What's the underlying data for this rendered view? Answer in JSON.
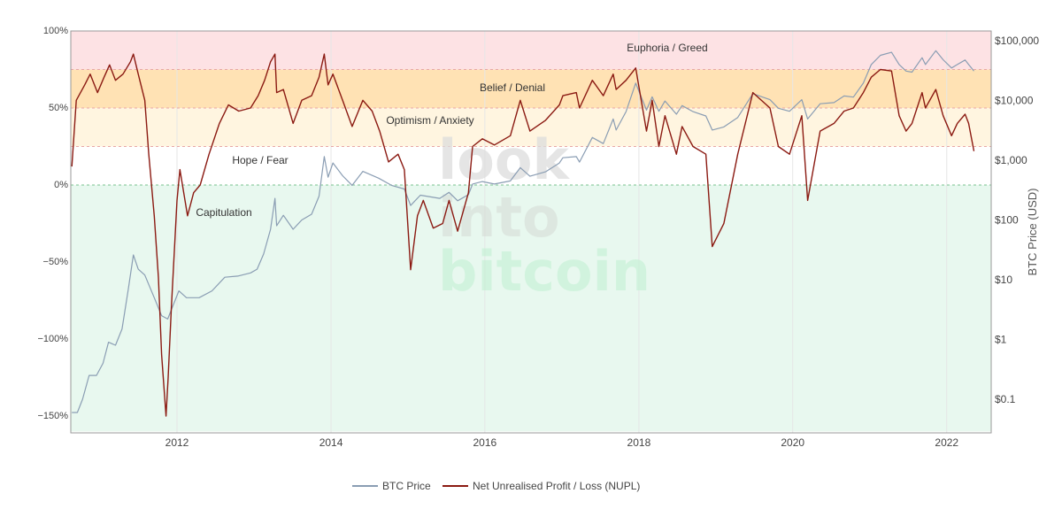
{
  "chart_data": {
    "type": "line",
    "title": "",
    "watermark": [
      "look",
      "into",
      "bitcoin"
    ],
    "x_axis": {
      "type": "date",
      "range": [
        "2010-08-15",
        "2022-07-31"
      ],
      "tick_labels": [
        "2012",
        "2014",
        "2016",
        "2018",
        "2020",
        "2022"
      ],
      "grid": true
    },
    "y_axis_left": {
      "unit": "percent",
      "range": [
        -160,
        100
      ],
      "tick_values": [
        100,
        50,
        0,
        -50,
        -100,
        -150
      ],
      "tick_labels": [
        "100%",
        "50%",
        "0%",
        "−50%",
        "−100%",
        "−150%"
      ]
    },
    "y_axis_right": {
      "title": "BTC Price (USD)",
      "scale": "log",
      "range": [
        0.02,
        200000
      ],
      "tick_values": [
        0.1,
        1,
        10,
        100,
        1000,
        10000,
        100000
      ],
      "tick_labels": [
        "$0.1",
        "$1",
        "$10",
        "$100",
        "$1,000",
        "$10,000",
        "$100,000"
      ]
    },
    "zones": [
      {
        "label": "Euphoria / Greed",
        "from": 75,
        "to": 100,
        "color": "#fde2e4"
      },
      {
        "label": "Belief / Denial",
        "from": 50,
        "to": 75,
        "color": "#ffe2b4"
      },
      {
        "label": "Optimism / Anxiety",
        "from": 25,
        "to": 50,
        "color": "#fff5e0"
      },
      {
        "label": "Hope / Fear",
        "from": 0,
        "to": 25,
        "color": "#ffffff"
      },
      {
        "label": "Capitulation",
        "from": -160,
        "to": 0,
        "color": "#e8f8ef"
      }
    ],
    "legend": {
      "placement": "bottom-center",
      "items": [
        "BTC Price",
        "Net Unrealised Profit / Loss (NUPL)"
      ]
    },
    "series": [
      {
        "name": "BTC Price",
        "axis": "right",
        "color": "#8a9db3",
        "points": [
          [
            "2010-08-20",
            0.06
          ],
          [
            "2010-09-15",
            0.06
          ],
          [
            "2010-10-10",
            0.1
          ],
          [
            "2010-11-10",
            0.25
          ],
          [
            "2010-12-15",
            0.25
          ],
          [
            "2011-01-15",
            0.4
          ],
          [
            "2011-02-10",
            0.9
          ],
          [
            "2011-03-15",
            0.8
          ],
          [
            "2011-04-15",
            1.5
          ],
          [
            "2011-05-15",
            7
          ],
          [
            "2011-06-08",
            26
          ],
          [
            "2011-07-01",
            15
          ],
          [
            "2011-08-01",
            12
          ],
          [
            "2011-09-15",
            5
          ],
          [
            "2011-10-20",
            2.5
          ],
          [
            "2011-11-18",
            2.2
          ],
          [
            "2012-01-10",
            6.5
          ],
          [
            "2012-02-15",
            5
          ],
          [
            "2012-04-15",
            5
          ],
          [
            "2012-06-15",
            6.5
          ],
          [
            "2012-08-15",
            11
          ],
          [
            "2012-10-15",
            11.5
          ],
          [
            "2012-12-15",
            13
          ],
          [
            "2013-01-15",
            15
          ],
          [
            "2013-02-15",
            27
          ],
          [
            "2013-03-20",
            70
          ],
          [
            "2013-04-10",
            230
          ],
          [
            "2013-04-18",
            80
          ],
          [
            "2013-05-20",
            120
          ],
          [
            "2013-07-05",
            70
          ],
          [
            "2013-08-15",
            100
          ],
          [
            "2013-10-01",
            125
          ],
          [
            "2013-11-05",
            250
          ],
          [
            "2013-11-30",
            1150
          ],
          [
            "2013-12-18",
            520
          ],
          [
            "2014-01-10",
            900
          ],
          [
            "2014-02-25",
            550
          ],
          [
            "2014-04-11",
            380
          ],
          [
            "2014-06-01",
            650
          ],
          [
            "2014-08-15",
            500
          ],
          [
            "2014-10-15",
            380
          ],
          [
            "2014-12-15",
            330
          ],
          [
            "2015-01-14",
            175
          ],
          [
            "2015-03-01",
            260
          ],
          [
            "2015-06-01",
            230
          ],
          [
            "2015-07-15",
            290
          ],
          [
            "2015-08-25",
            210
          ],
          [
            "2015-10-15",
            265
          ],
          [
            "2015-11-04",
            400
          ],
          [
            "2015-12-20",
            440
          ],
          [
            "2016-02-15",
            400
          ],
          [
            "2016-05-01",
            450
          ],
          [
            "2016-06-17",
            750
          ],
          [
            "2016-08-02",
            540
          ],
          [
            "2016-10-15",
            640
          ],
          [
            "2016-12-20",
            900
          ],
          [
            "2017-01-05",
            1100
          ],
          [
            "2017-03-10",
            1150
          ],
          [
            "2017-03-25",
            930
          ],
          [
            "2017-05-25",
            2400
          ],
          [
            "2017-07-16",
            1900
          ],
          [
            "2017-09-01",
            4900
          ],
          [
            "2017-09-15",
            3200
          ],
          [
            "2017-11-01",
            6500
          ],
          [
            "2017-12-17",
            19500
          ],
          [
            "2018-02-06",
            6900
          ],
          [
            "2018-03-05",
            11500
          ],
          [
            "2018-04-06",
            6600
          ],
          [
            "2018-05-05",
            9800
          ],
          [
            "2018-06-28",
            5900
          ],
          [
            "2018-07-25",
            8200
          ],
          [
            "2018-09-15",
            6500
          ],
          [
            "2018-11-15",
            5500
          ],
          [
            "2018-12-15",
            3200
          ],
          [
            "2019-02-08",
            3600
          ],
          [
            "2019-04-15",
            5200
          ],
          [
            "2019-06-26",
            13000
          ],
          [
            "2019-09-15",
            10300
          ],
          [
            "2019-10-25",
            7400
          ],
          [
            "2019-12-17",
            6600
          ],
          [
            "2020-02-13",
            10300
          ],
          [
            "2020-03-12",
            4900
          ],
          [
            "2020-05-10",
            8800
          ],
          [
            "2020-07-15",
            9200
          ],
          [
            "2020-09-01",
            11900
          ],
          [
            "2020-10-15",
            11400
          ],
          [
            "2020-12-01",
            19500
          ],
          [
            "2021-01-08",
            40000
          ],
          [
            "2021-02-20",
            57000
          ],
          [
            "2021-04-14",
            64000
          ],
          [
            "2021-05-20",
            40000
          ],
          [
            "2021-06-22",
            31000
          ],
          [
            "2021-07-20",
            29800
          ],
          [
            "2021-09-06",
            52000
          ],
          [
            "2021-09-22",
            40000
          ],
          [
            "2021-11-10",
            68000
          ],
          [
            "2021-12-15",
            48000
          ],
          [
            "2022-01-24",
            35000
          ],
          [
            "2022-02-20",
            40000
          ],
          [
            "2022-03-29",
            47500
          ],
          [
            "2022-04-15",
            40000
          ],
          [
            "2022-05-10",
            31000
          ]
        ]
      },
      {
        "name": "Net Unrealised Profit / Loss (NUPL)",
        "axis": "left",
        "color": "#8b1a12",
        "points": [
          [
            "2010-08-20",
            12
          ],
          [
            "2010-09-10",
            55
          ],
          [
            "2010-10-20",
            65
          ],
          [
            "2010-11-15",
            72
          ],
          [
            "2010-12-20",
            60
          ],
          [
            "2011-01-20",
            70
          ],
          [
            "2011-02-15",
            78
          ],
          [
            "2011-03-15",
            68
          ],
          [
            "2011-04-20",
            72
          ],
          [
            "2011-05-25",
            80
          ],
          [
            "2011-06-08",
            85
          ],
          [
            "2011-07-01",
            72
          ],
          [
            "2011-08-01",
            55
          ],
          [
            "2011-08-20",
            20
          ],
          [
            "2011-09-15",
            -20
          ],
          [
            "2011-10-05",
            -60
          ],
          [
            "2011-10-20",
            -110
          ],
          [
            "2011-11-10",
            -150
          ],
          [
            "2011-11-20",
            -125
          ],
          [
            "2011-12-05",
            -80
          ],
          [
            "2012-01-01",
            -10
          ],
          [
            "2012-01-15",
            10
          ],
          [
            "2012-02-20",
            -20
          ],
          [
            "2012-03-20",
            -5
          ],
          [
            "2012-04-20",
            0
          ],
          [
            "2012-06-01",
            20
          ],
          [
            "2012-07-20",
            40
          ],
          [
            "2012-09-01",
            52
          ],
          [
            "2012-10-20",
            48
          ],
          [
            "2012-12-15",
            50
          ],
          [
            "2013-01-20",
            58
          ],
          [
            "2013-02-20",
            68
          ],
          [
            "2013-03-20",
            80
          ],
          [
            "2013-04-10",
            85
          ],
          [
            "2013-04-18",
            60
          ],
          [
            "2013-05-20",
            62
          ],
          [
            "2013-07-05",
            40
          ],
          [
            "2013-08-15",
            55
          ],
          [
            "2013-10-01",
            58
          ],
          [
            "2013-11-05",
            70
          ],
          [
            "2013-11-30",
            85
          ],
          [
            "2013-12-18",
            65
          ],
          [
            "2014-01-10",
            72
          ],
          [
            "2014-02-25",
            55
          ],
          [
            "2014-04-11",
            38
          ],
          [
            "2014-06-01",
            55
          ],
          [
            "2014-07-15",
            48
          ],
          [
            "2014-08-20",
            35
          ],
          [
            "2014-10-01",
            15
          ],
          [
            "2014-11-15",
            20
          ],
          [
            "2014-12-15",
            10
          ],
          [
            "2015-01-14",
            -55
          ],
          [
            "2015-02-15",
            -20
          ],
          [
            "2015-03-15",
            -10
          ],
          [
            "2015-05-01",
            -28
          ],
          [
            "2015-06-15",
            -25
          ],
          [
            "2015-07-15",
            -10
          ],
          [
            "2015-08-25",
            -30
          ],
          [
            "2015-10-15",
            -5
          ],
          [
            "2015-11-04",
            25
          ],
          [
            "2015-12-20",
            30
          ],
          [
            "2016-02-15",
            26
          ],
          [
            "2016-05-01",
            32
          ],
          [
            "2016-06-17",
            55
          ],
          [
            "2016-08-02",
            35
          ],
          [
            "2016-10-15",
            42
          ],
          [
            "2016-12-20",
            52
          ],
          [
            "2017-01-05",
            58
          ],
          [
            "2017-03-10",
            60
          ],
          [
            "2017-03-25",
            50
          ],
          [
            "2017-05-25",
            68
          ],
          [
            "2017-07-16",
            58
          ],
          [
            "2017-09-01",
            72
          ],
          [
            "2017-09-15",
            62
          ],
          [
            "2017-11-01",
            68
          ],
          [
            "2017-12-17",
            76
          ],
          [
            "2018-02-06",
            35
          ],
          [
            "2018-03-05",
            55
          ],
          [
            "2018-04-06",
            25
          ],
          [
            "2018-05-05",
            45
          ],
          [
            "2018-06-28",
            20
          ],
          [
            "2018-07-25",
            38
          ],
          [
            "2018-09-15",
            25
          ],
          [
            "2018-11-15",
            20
          ],
          [
            "2018-12-15",
            -40
          ],
          [
            "2019-02-08",
            -25
          ],
          [
            "2019-04-15",
            20
          ],
          [
            "2019-06-26",
            60
          ],
          [
            "2019-09-15",
            50
          ],
          [
            "2019-10-25",
            25
          ],
          [
            "2019-12-17",
            20
          ],
          [
            "2020-02-13",
            45
          ],
          [
            "2020-03-12",
            -10
          ],
          [
            "2020-05-10",
            35
          ],
          [
            "2020-07-15",
            40
          ],
          [
            "2020-09-01",
            48
          ],
          [
            "2020-10-15",
            50
          ],
          [
            "2020-12-01",
            60
          ],
          [
            "2021-01-08",
            70
          ],
          [
            "2021-02-20",
            75
          ],
          [
            "2021-04-14",
            74
          ],
          [
            "2021-05-20",
            45
          ],
          [
            "2021-06-22",
            35
          ],
          [
            "2021-07-20",
            40
          ],
          [
            "2021-09-06",
            60
          ],
          [
            "2021-09-22",
            50
          ],
          [
            "2021-11-10",
            62
          ],
          [
            "2021-12-15",
            45
          ],
          [
            "2022-01-24",
            32
          ],
          [
            "2022-02-20",
            40
          ],
          [
            "2022-03-29",
            46
          ],
          [
            "2022-04-15",
            40
          ],
          [
            "2022-05-10",
            22
          ]
        ]
      }
    ]
  }
}
